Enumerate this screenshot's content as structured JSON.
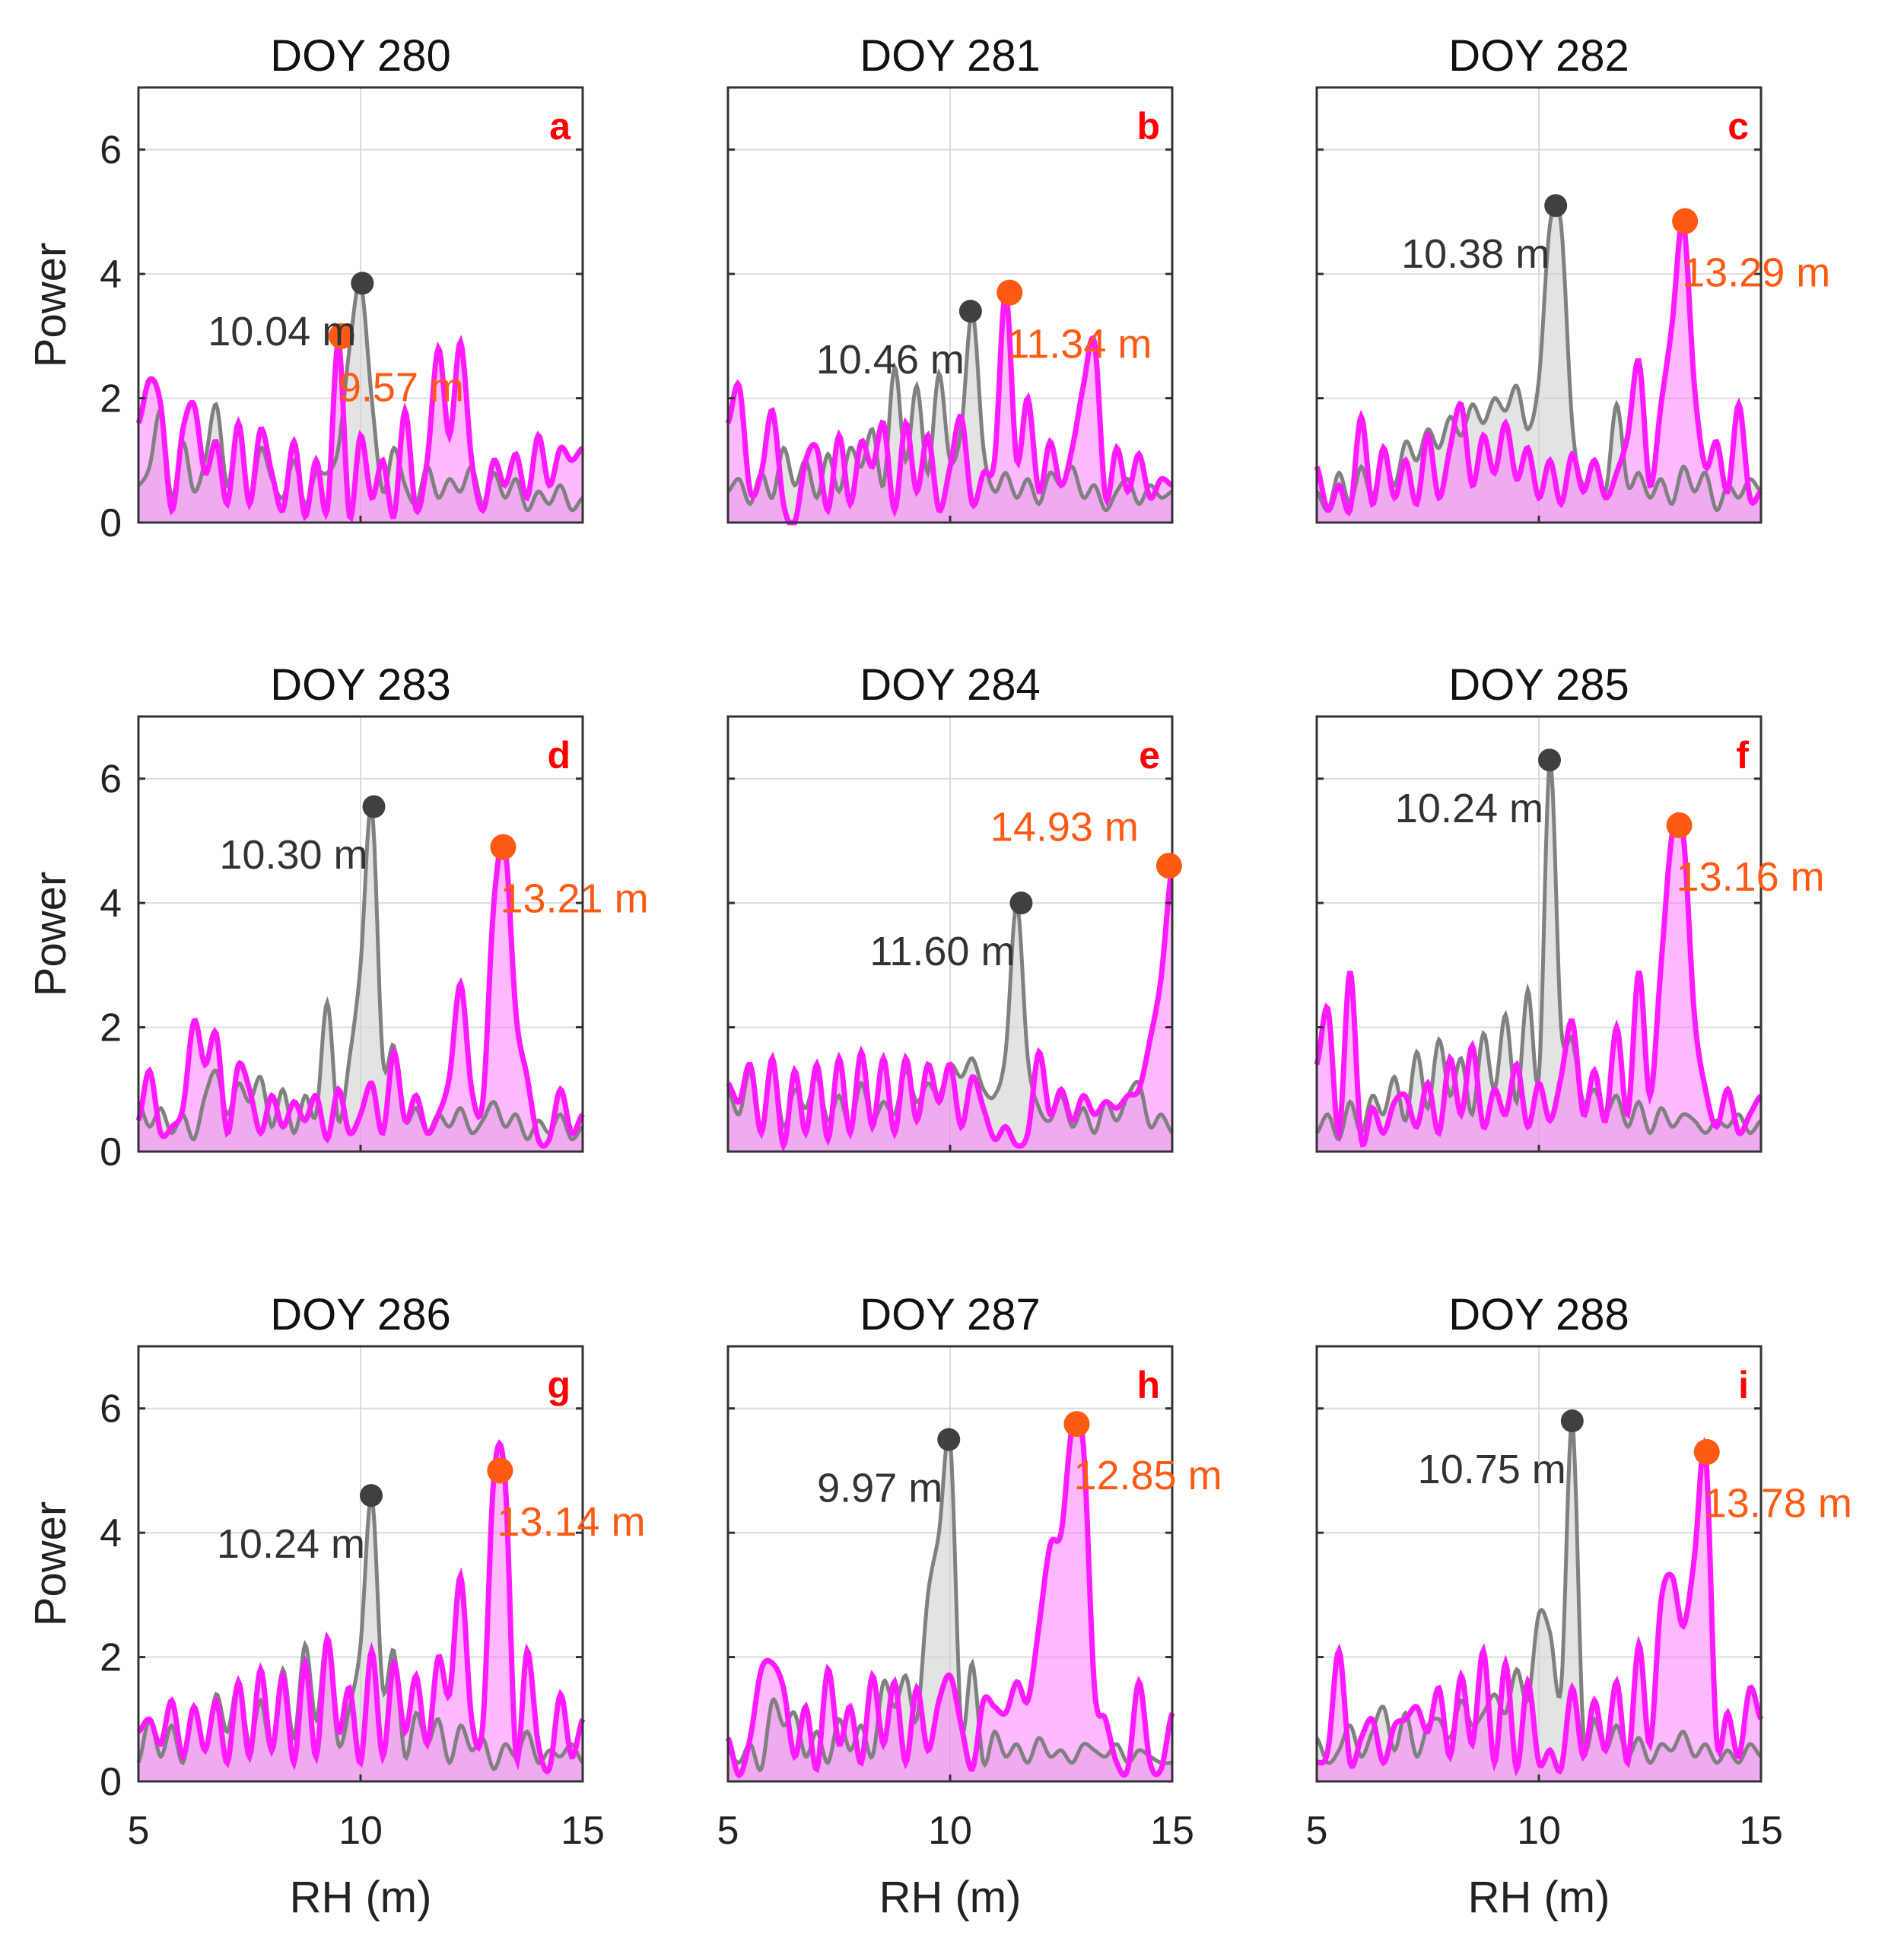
{
  "chart_data": {
    "type": "area",
    "layout": "3x3 panels",
    "xlabel": "RH (m)",
    "ylabel": "Power",
    "xlim": [
      5,
      15
    ],
    "ylim": [
      0,
      7
    ],
    "xticks": [
      5,
      10,
      15
    ],
    "yticks": [
      0,
      2,
      4,
      6
    ],
    "grid": true,
    "x_start": 5,
    "x_step": 0.25,
    "colors": {
      "reference": "#808080",
      "reference_fill": "#d0d0d0",
      "reference_marker": "#404040",
      "retrieved": "#ff1aff",
      "retrieved_fill": "#ff66ff",
      "retrieved_marker": "#ff5a14",
      "panel_letter": "#ff0000"
    },
    "panels": [
      {
        "title": "DOY 280",
        "letter": "a",
        "gray_peak": {
          "x": 10.04,
          "y": 3.85,
          "label": "10.04 m"
        },
        "orange_peak": {
          "x": 9.57,
          "y": 3.0,
          "label": "9.57 m"
        },
        "gray": [
          0.6,
          0.9,
          1.8,
          0.4,
          1.3,
          0.5,
          1.0,
          1.9,
          0.6,
          1.5,
          0.3,
          1.2,
          0.7,
          0.4,
          1.0,
          0.3,
          0.8,
          0.8,
          1.2,
          2.8,
          3.85,
          2.0,
          0.5,
          1.2,
          0.6,
          0.3,
          0.9,
          0.4,
          0.7,
          0.5,
          0.9,
          0.3,
          0.8,
          0.4,
          0.7,
          0.2,
          0.5,
          0.3,
          0.6,
          0.2,
          0.4
        ],
        "magenta": [
          1.6,
          2.3,
          1.9,
          0.2,
          1.5,
          1.9,
          0.8,
          1.3,
          0.3,
          1.6,
          0.3,
          1.5,
          0.8,
          0.2,
          1.3,
          0.1,
          1.0,
          0.2,
          2.9,
          0.1,
          1.4,
          0.4,
          1.0,
          0.1,
          1.8,
          0.2,
          1.0,
          2.8,
          1.4,
          2.9,
          1.0,
          0.2,
          1.0,
          0.6,
          1.1,
          0.4,
          1.4,
          0.6,
          1.2,
          1.0,
          1.2
        ]
      },
      {
        "title": "DOY 281",
        "letter": "b",
        "gray_peak": {
          "x": 10.46,
          "y": 3.4,
          "label": "10.46 m"
        },
        "orange_peak": {
          "x": 11.34,
          "y": 3.7,
          "label": "11.34 m"
        },
        "gray": [
          0.5,
          0.7,
          0.3,
          0.8,
          0.4,
          1.2,
          0.6,
          1.0,
          0.4,
          1.1,
          0.5,
          1.2,
          0.9,
          1.5,
          0.6,
          2.5,
          1.0,
          2.2,
          0.8,
          2.4,
          1.0,
          1.5,
          3.4,
          1.2,
          0.5,
          0.8,
          0.4,
          0.7,
          0.3,
          0.8,
          0.6,
          0.9,
          0.4,
          0.6,
          0.2,
          0.5,
          0.7,
          0.3,
          0.6,
          0.4,
          0.5
        ],
        "magenta": [
          1.6,
          2.2,
          0.5,
          0.8,
          1.8,
          0.3,
          0.0,
          1.0,
          1.2,
          0.2,
          1.4,
          0.3,
          1.3,
          0.9,
          1.6,
          0.2,
          1.6,
          0.5,
          1.4,
          0.2,
          0.9,
          1.7,
          0.3,
          0.8,
          1.0,
          3.7,
          1.0,
          2.0,
          0.5,
          1.3,
          0.6,
          1.2,
          2.2,
          2.9,
          0.4,
          1.2,
          0.5,
          1.1,
          0.4,
          0.7,
          0.6
        ]
      },
      {
        "title": "DOY 282",
        "letter": "c",
        "gray_peak": {
          "x": 10.38,
          "y": 5.1,
          "label": "10.38 m"
        },
        "orange_peak": {
          "x": 13.29,
          "y": 4.85,
          "label": "13.29 m"
        },
        "gray": [
          0.5,
          0.2,
          0.8,
          0.3,
          0.9,
          0.4,
          1.1,
          0.6,
          1.3,
          1.0,
          1.5,
          1.2,
          1.7,
          1.4,
          1.9,
          1.6,
          2.0,
          1.8,
          2.2,
          1.5,
          2.3,
          4.8,
          4.8,
          1.6,
          0.6,
          1.0,
          0.5,
          1.9,
          0.6,
          0.8,
          0.4,
          0.7,
          0.3,
          0.9,
          0.5,
          0.8,
          0.2,
          0.6,
          0.4,
          0.7,
          0.5
        ],
        "magenta": [
          0.9,
          0.2,
          0.6,
          0.2,
          1.7,
          0.3,
          1.2,
          0.4,
          1.0,
          0.3,
          1.4,
          0.4,
          1.2,
          1.9,
          0.6,
          1.4,
          0.8,
          1.6,
          0.7,
          1.2,
          0.4,
          1.0,
          0.3,
          1.1,
          0.5,
          1.0,
          0.4,
          0.8,
          1.4,
          2.6,
          0.6,
          1.9,
          3.2,
          4.85,
          2.2,
          0.9,
          1.3,
          0.5,
          1.9,
          0.4,
          0.5
        ]
      },
      {
        "title": "DOY 283",
        "letter": "d",
        "gray_peak": {
          "x": 10.3,
          "y": 5.55,
          "label": "10.30 m"
        },
        "orange_peak": {
          "x": 13.21,
          "y": 4.9,
          "label": "13.21 m"
        },
        "gray": [
          0.8,
          0.4,
          0.7,
          0.3,
          0.6,
          0.2,
          0.9,
          1.3,
          0.6,
          1.1,
          0.8,
          1.2,
          0.4,
          1.0,
          0.3,
          0.9,
          0.6,
          2.4,
          0.5,
          1.5,
          3.0,
          5.55,
          1.5,
          1.7,
          0.5,
          0.7,
          0.3,
          0.6,
          0.4,
          0.7,
          0.3,
          0.5,
          0.8,
          0.4,
          0.6,
          0.2,
          0.5,
          0.3,
          0.6,
          0.2,
          0.4
        ],
        "magenta": [
          0.5,
          1.3,
          0.3,
          0.4,
          0.7,
          2.1,
          1.4,
          1.9,
          0.3,
          1.4,
          1.0,
          0.3,
          0.9,
          0.4,
          0.8,
          0.5,
          0.9,
          0.2,
          1.0,
          0.3,
          0.6,
          1.1,
          0.3,
          1.6,
          0.5,
          0.9,
          0.3,
          0.6,
          1.2,
          2.7,
          1.0,
          0.8,
          4.0,
          4.9,
          2.2,
          1.2,
          0.2,
          0.2,
          1.0,
          0.3,
          0.6
        ]
      },
      {
        "title": "DOY 284",
        "letter": "e",
        "gray_peak": {
          "x": 11.6,
          "y": 4.0,
          "label": "11.60 m"
        },
        "orange_peak": {
          "x": 14.93,
          "y": 4.6,
          "label": "14.93 m"
        },
        "gray": [
          1.0,
          0.6,
          1.3,
          0.3,
          1.4,
          0.4,
          1.0,
          0.7,
          1.2,
          0.5,
          0.9,
          0.4,
          1.1,
          0.5,
          0.8,
          0.6,
          1.3,
          0.8,
          1.1,
          0.9,
          1.4,
          1.2,
          1.5,
          1.0,
          0.9,
          1.6,
          4.0,
          1.5,
          0.7,
          0.5,
          0.9,
          0.4,
          0.7,
          0.3,
          0.8,
          0.5,
          0.9,
          1.1,
          0.4,
          0.6,
          0.3
        ],
        "magenta": [
          1.1,
          0.8,
          1.4,
          0.3,
          1.5,
          0.1,
          1.3,
          0.3,
          1.4,
          0.2,
          1.5,
          0.3,
          1.6,
          0.4,
          1.5,
          0.3,
          1.5,
          0.5,
          1.4,
          0.8,
          1.4,
          0.4,
          1.2,
          0.7,
          0.2,
          0.4,
          0.1,
          0.3,
          1.6,
          0.6,
          1.0,
          0.5,
          0.9,
          0.6,
          0.8,
          0.7,
          0.9,
          1.0,
          1.8,
          2.8,
          4.6
        ]
      },
      {
        "title": "DOY 285",
        "letter": "f",
        "gray_peak": {
          "x": 10.24,
          "y": 6.3,
          "label": "10.24 m"
        },
        "orange_peak": {
          "x": 13.16,
          "y": 5.25,
          "label": "13.16 m"
        },
        "gray": [
          0.3,
          0.6,
          0.2,
          0.8,
          0.3,
          0.9,
          0.6,
          1.2,
          0.5,
          1.6,
          0.7,
          1.8,
          0.9,
          1.5,
          0.6,
          1.9,
          1.0,
          2.2,
          0.8,
          2.6,
          1.2,
          6.3,
          2.0,
          1.8,
          0.8,
          1.0,
          0.6,
          0.9,
          0.4,
          0.8,
          0.3,
          0.7,
          0.4,
          0.6,
          0.5,
          0.3,
          0.5,
          0.4,
          0.6,
          0.3,
          0.5
        ],
        "magenta": [
          1.4,
          2.3,
          0.3,
          2.9,
          0.2,
          0.7,
          0.3,
          0.8,
          0.9,
          0.4,
          1.1,
          0.3,
          1.5,
          0.6,
          1.7,
          0.4,
          1.0,
          0.6,
          1.4,
          0.4,
          1.1,
          0.5,
          1.2,
          2.1,
          0.6,
          1.3,
          0.5,
          2.0,
          0.6,
          2.9,
          0.9,
          3.0,
          5.1,
          5.1,
          2.2,
          1.0,
          0.4,
          1.0,
          0.3,
          0.6,
          0.9
        ]
      },
      {
        "title": "DOY 286",
        "letter": "g",
        "gray_peak": {
          "x": 10.24,
          "y": 4.6,
          "label": "10.24 m"
        },
        "orange_peak": {
          "x": 13.14,
          "y": 5.0,
          "label": "13.14 m"
        },
        "gray": [
          0.3,
          1.0,
          0.4,
          0.9,
          0.3,
          1.2,
          0.5,
          1.4,
          0.8,
          1.6,
          0.6,
          1.3,
          0.5,
          1.8,
          0.7,
          2.2,
          1.0,
          2.3,
          0.6,
          1.2,
          2.2,
          4.6,
          1.5,
          2.1,
          0.4,
          1.1,
          0.6,
          1.0,
          0.3,
          0.9,
          0.5,
          0.7,
          0.2,
          0.6,
          0.4,
          0.8,
          0.3,
          0.5,
          0.4,
          0.6,
          0.3
        ],
        "magenta": [
          0.8,
          1.0,
          0.6,
          1.3,
          0.4,
          1.2,
          0.5,
          1.3,
          0.3,
          1.6,
          0.4,
          1.8,
          0.5,
          1.7,
          0.3,
          1.9,
          0.4,
          2.3,
          0.8,
          1.5,
          0.3,
          2.1,
          0.4,
          1.9,
          0.8,
          1.7,
          0.6,
          2.0,
          1.4,
          3.3,
          1.0,
          0.9,
          4.9,
          4.9,
          0.4,
          2.1,
          0.6,
          0.2,
          1.4,
          0.4,
          1.0
        ]
      },
      {
        "title": "DOY 287",
        "letter": "h",
        "gray_peak": {
          "x": 9.97,
          "y": 5.5,
          "label": "9.97 m"
        },
        "orange_peak": {
          "x": 12.85,
          "y": 5.75,
          "label": "12.85 m"
        },
        "gray": [
          0.5,
          0.3,
          0.6,
          0.2,
          1.3,
          0.9,
          1.1,
          0.4,
          0.8,
          0.3,
          1.0,
          0.5,
          0.9,
          0.4,
          1.6,
          1.2,
          1.7,
          1.0,
          3.0,
          4.0,
          5.5,
          0.9,
          1.9,
          0.3,
          0.8,
          0.4,
          0.6,
          0.3,
          0.7,
          0.4,
          0.5,
          0.3,
          0.6,
          0.5,
          0.4,
          0.6,
          0.3,
          0.5,
          0.4,
          0.3,
          0.3
        ],
        "magenta": [
          0.7,
          0.1,
          0.7,
          1.8,
          1.9,
          1.5,
          0.4,
          1.2,
          0.2,
          1.8,
          0.6,
          1.2,
          0.3,
          1.7,
          0.6,
          1.6,
          0.3,
          1.5,
          0.5,
          1.3,
          1.7,
          0.9,
          0.2,
          1.3,
          1.2,
          1.1,
          1.6,
          1.3,
          2.5,
          3.8,
          4.0,
          5.7,
          5.4,
          1.5,
          1.0,
          0.3,
          0.2,
          1.6,
          0.3,
          0.2,
          1.1
        ]
      },
      {
        "title": "DOY 288",
        "letter": "i",
        "gray_peak": {
          "x": 10.75,
          "y": 5.8,
          "label": "10.75 m"
        },
        "orange_peak": {
          "x": 13.78,
          "y": 5.3,
          "label": "13.78 m"
        },
        "gray": [
          0.7,
          0.3,
          0.5,
          0.9,
          0.4,
          0.8,
          1.2,
          0.5,
          1.1,
          0.4,
          0.9,
          1.0,
          0.7,
          1.3,
          0.9,
          1.1,
          1.4,
          1.1,
          1.8,
          1.3,
          2.7,
          2.4,
          1.5,
          5.8,
          0.8,
          1.0,
          0.5,
          0.9,
          0.4,
          0.7,
          0.3,
          0.6,
          0.5,
          0.8,
          0.4,
          0.6,
          0.3,
          0.5,
          0.3,
          0.6,
          0.4
        ],
        "magenta": [
          0.3,
          0.5,
          2.1,
          0.3,
          0.7,
          1.0,
          0.3,
          0.9,
          1.0,
          1.2,
          0.8,
          1.5,
          0.4,
          1.7,
          0.6,
          2.1,
          0.3,
          1.9,
          0.2,
          1.6,
          0.3,
          0.5,
          0.2,
          1.5,
          0.4,
          1.3,
          0.5,
          1.6,
          0.3,
          2.2,
          0.6,
          2.9,
          3.3,
          2.5,
          3.6,
          5.3,
          0.7,
          1.1,
          0.4,
          1.5,
          1.0
        ]
      }
    ]
  }
}
